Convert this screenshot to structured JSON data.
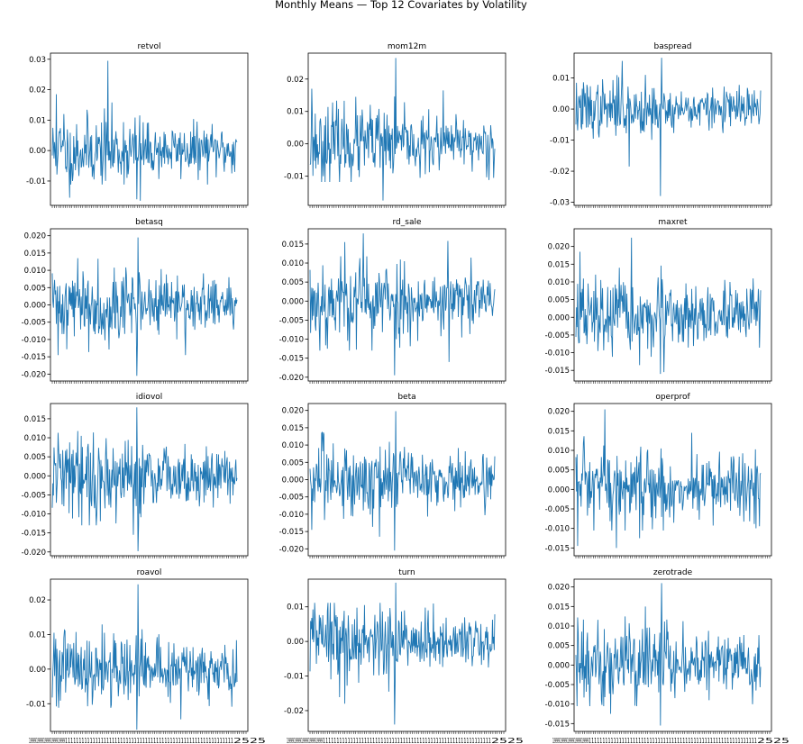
{
  "figure": {
    "suptitle": "Monthly Means — Top 12 Covariates by Volatility",
    "line_color": "#1f77b4",
    "x_tick_label_left": "19",
    "x_tick_label_right": "25"
  },
  "chart_data": [
    {
      "type": "line",
      "title": "retvol",
      "n_points": 320,
      "seed": 11,
      "scale": 0.0058,
      "yticks": [
        -0.01,
        0.0,
        0.01,
        0.02,
        0.03
      ],
      "ylim": [
        -0.018,
        0.032
      ],
      "spikes": [
        [
          96,
          0.0295
        ],
        [
          7,
          0.0185
        ],
        [
          30,
          -0.0155
        ],
        [
          152,
          -0.0165
        ],
        [
          146,
          -0.016
        ],
        [
          20,
          0.012
        ]
      ],
      "xlabel": "",
      "ylabel": ""
    },
    {
      "type": "line",
      "title": "mom12m",
      "n_points": 320,
      "seed": 23,
      "scale": 0.0058,
      "yticks": [
        -0.01,
        0.0,
        0.01,
        0.02
      ],
      "ylim": [
        -0.019,
        0.028
      ],
      "spikes": [
        [
          148,
          0.0265
        ],
        [
          126,
          -0.0175
        ],
        [
          3,
          0.017
        ],
        [
          190,
          -0.0105
        ],
        [
          230,
          0.0165
        ]
      ],
      "xlabel": "",
      "ylabel": ""
    },
    {
      "type": "line",
      "title": "baspread",
      "n_points": 320,
      "seed": 37,
      "scale": 0.0045,
      "yticks": [
        -0.03,
        -0.02,
        -0.01,
        0.0,
        0.01
      ],
      "ylim": [
        -0.031,
        0.018
      ],
      "spikes": [
        [
          148,
          0.0165
        ],
        [
          146,
          -0.028
        ],
        [
          80,
          0.0155
        ],
        [
          92,
          -0.0185
        ],
        [
          120,
          0.011
        ]
      ],
      "xlabel": "",
      "ylabel": ""
    },
    {
      "type": "line",
      "title": "betasq",
      "n_points": 320,
      "seed": 41,
      "scale": 0.0055,
      "yticks": [
        -0.02,
        -0.015,
        -0.01,
        -0.005,
        0.0,
        0.005,
        0.01,
        0.015,
        0.02
      ],
      "ylim": [
        -0.022,
        0.022
      ],
      "spikes": [
        [
          148,
          0.0195
        ],
        [
          146,
          -0.0205
        ],
        [
          44,
          0.0135
        ],
        [
          10,
          -0.0145
        ],
        [
          230,
          -0.0145
        ]
      ],
      "xlabel": "",
      "ylabel": ""
    },
    {
      "type": "line",
      "title": "rd_sale",
      "n_points": 320,
      "seed": 53,
      "scale": 0.0058,
      "yticks": [
        -0.02,
        -0.015,
        -0.01,
        -0.005,
        0.0,
        0.005,
        0.01,
        0.015
      ],
      "ylim": [
        -0.021,
        0.019
      ],
      "spikes": [
        [
          92,
          0.0178
        ],
        [
          146,
          -0.0195
        ],
        [
          238,
          0.0158
        ],
        [
          240,
          -0.016
        ],
        [
          60,
          0.0155
        ],
        [
          30,
          -0.0125
        ]
      ],
      "xlabel": "",
      "ylabel": ""
    },
    {
      "type": "line",
      "title": "maxret",
      "n_points": 320,
      "seed": 67,
      "scale": 0.0055,
      "yticks": [
        -0.015,
        -0.01,
        -0.005,
        0.0,
        0.005,
        0.01,
        0.015,
        0.02
      ],
      "ylim": [
        -0.018,
        0.025
      ],
      "spikes": [
        [
          96,
          0.0225
        ],
        [
          7,
          0.0185
        ],
        [
          146,
          -0.016
        ],
        [
          152,
          -0.0155
        ],
        [
          110,
          -0.0135
        ]
      ],
      "xlabel": "",
      "ylabel": ""
    },
    {
      "type": "line",
      "title": "idiovol",
      "n_points": 320,
      "seed": 79,
      "scale": 0.0055,
      "yticks": [
        -0.02,
        -0.015,
        -0.01,
        -0.005,
        0.0,
        0.005,
        0.01,
        0.015
      ],
      "ylim": [
        -0.021,
        0.019
      ],
      "spikes": [
        [
          146,
          0.018
        ],
        [
          148,
          -0.0198
        ],
        [
          140,
          -0.0155
        ],
        [
          50,
          0.0105
        ],
        [
          110,
          -0.0125
        ]
      ],
      "xlabel": "",
      "ylabel": ""
    },
    {
      "type": "line",
      "title": "beta",
      "n_points": 320,
      "seed": 83,
      "scale": 0.0055,
      "yticks": [
        -0.02,
        -0.015,
        -0.01,
        -0.005,
        0.0,
        0.005,
        0.01,
        0.015,
        0.02
      ],
      "ylim": [
        -0.022,
        0.022
      ],
      "spikes": [
        [
          148,
          0.0198
        ],
        [
          146,
          -0.0205
        ],
        [
          3,
          -0.0145
        ],
        [
          120,
          -0.0165
        ],
        [
          60,
          0.009
        ]
      ],
      "xlabel": "",
      "ylabel": ""
    },
    {
      "type": "line",
      "title": "operprof",
      "n_points": 320,
      "seed": 97,
      "scale": 0.0058,
      "yticks": [
        -0.015,
        -0.01,
        -0.005,
        0.0,
        0.005,
        0.01,
        0.015,
        0.02
      ],
      "ylim": [
        -0.017,
        0.022
      ],
      "spikes": [
        [
          50,
          0.0205
        ],
        [
          3,
          -0.0145
        ],
        [
          70,
          -0.015
        ],
        [
          200,
          0.0145
        ],
        [
          110,
          -0.0125
        ]
      ],
      "xlabel": "",
      "ylabel": ""
    },
    {
      "type": "line",
      "title": "roavol",
      "n_points": 320,
      "seed": 101,
      "scale": 0.0055,
      "yticks": [
        -0.01,
        0.0,
        0.01,
        0.02
      ],
      "ylim": [
        -0.018,
        0.026
      ],
      "spikes": [
        [
          148,
          0.0245
        ],
        [
          146,
          -0.0175
        ],
        [
          3,
          0.0105
        ],
        [
          222,
          -0.0145
        ],
        [
          90,
          0.0105
        ]
      ],
      "xlabel": "",
      "ylabel": ""
    },
    {
      "type": "line",
      "title": "turn",
      "n_points": 320,
      "seed": 113,
      "scale": 0.0055,
      "yticks": [
        -0.02,
        -0.01,
        0.0,
        0.01
      ],
      "ylim": [
        -0.026,
        0.018
      ],
      "spikes": [
        [
          148,
          0.017
        ],
        [
          146,
          -0.024
        ],
        [
          60,
          -0.018
        ],
        [
          94,
          0.0105
        ],
        [
          136,
          -0.0145
        ]
      ],
      "xlabel": "",
      "ylabel": ""
    },
    {
      "type": "line",
      "title": "zerotrade",
      "n_points": 320,
      "seed": 127,
      "scale": 0.0055,
      "yticks": [
        -0.015,
        -0.01,
        -0.005,
        0.0,
        0.005,
        0.01,
        0.015,
        0.02
      ],
      "ylim": [
        -0.017,
        0.022
      ],
      "spikes": [
        [
          148,
          0.021
        ],
        [
          146,
          -0.0155
        ],
        [
          120,
          0.015
        ],
        [
          60,
          -0.0125
        ],
        [
          230,
          -0.009
        ]
      ],
      "xlabel": "",
      "ylabel": ""
    }
  ]
}
